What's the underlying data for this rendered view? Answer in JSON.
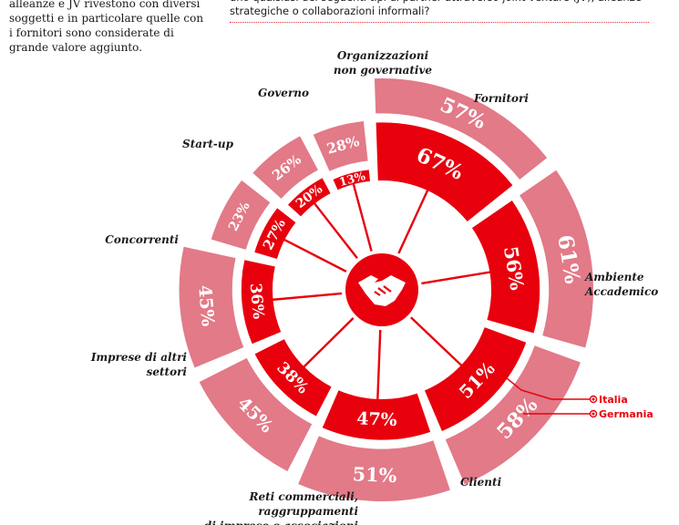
{
  "intro_text": "alleanze e JV rivestono con diversi soggetti e in particolare quelle con i fornitori sono considerate di grande valore aggiunto.",
  "question_text": "uno qualsiasi dei seguenti tipi di partner attraverso joint venture (JV), alleanze strategiche o collaborazioni informali?",
  "colors": {
    "italia": "#e8000d",
    "germania": "#e27a88",
    "spoke": "#e8000d"
  },
  "center_icon": "handshake-icon",
  "chart_data": {
    "type": "radial-bar",
    "unit": "%",
    "series": [
      {
        "name": "Italia",
        "color": "#e8000d"
      },
      {
        "name": "Germania",
        "color": "#e27a88"
      }
    ],
    "legend_position": "right",
    "categories": [
      {
        "label": "Fornitori",
        "italia": 67,
        "germania": 57
      },
      {
        "label": "Ambiente Accademico",
        "italia": 56,
        "germania": 61
      },
      {
        "label": "Clienti",
        "italia": 51,
        "germania": 58
      },
      {
        "label": "Reti commerciali, raggruppamenti di imprese o associazioni",
        "italia": 47,
        "germania": 51
      },
      {
        "label": "Imprese di altri settori",
        "italia": 38,
        "germania": 45
      },
      {
        "label": "Concorrenti",
        "italia": 36,
        "germania": 45
      },
      {
        "label": "Start-up",
        "italia": 27,
        "germania": 23
      },
      {
        "label": "Governo",
        "italia": 20,
        "germania": 26
      },
      {
        "label": "Organizzazioni non governative",
        "italia": 13,
        "germania": 28
      }
    ]
  }
}
